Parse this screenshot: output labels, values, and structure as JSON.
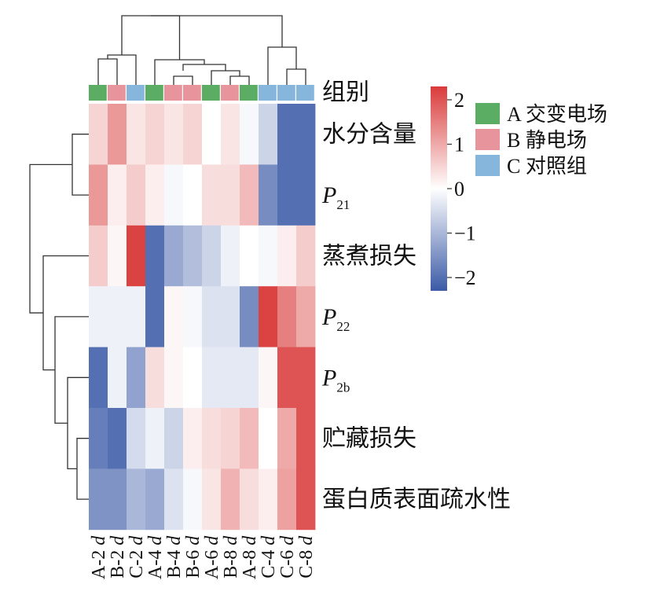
{
  "chart_data": {
    "type": "heatmap",
    "columns": [
      {
        "name": "A-2",
        "unit": "d",
        "group": "A"
      },
      {
        "name": "B-2",
        "unit": "d",
        "group": "B"
      },
      {
        "name": "C-2",
        "unit": "d",
        "group": "C"
      },
      {
        "name": "A-4",
        "unit": "d",
        "group": "A"
      },
      {
        "name": "B-4",
        "unit": "d",
        "group": "B"
      },
      {
        "name": "B-6",
        "unit": "d",
        "group": "B"
      },
      {
        "name": "A-6",
        "unit": "d",
        "group": "A"
      },
      {
        "name": "B-8",
        "unit": "d",
        "group": "B"
      },
      {
        "name": "A-8",
        "unit": "d",
        "group": "A"
      },
      {
        "name": "C-4",
        "unit": "d",
        "group": "C"
      },
      {
        "name": "C-6",
        "unit": "d",
        "group": "C"
      },
      {
        "name": "C-8",
        "unit": "d",
        "group": "C"
      }
    ],
    "rows": [
      {
        "label": "水分含量",
        "var": "",
        "sub": ""
      },
      {
        "label": "",
        "var": "P",
        "sub": "21"
      },
      {
        "label": "蒸煮损失",
        "var": "",
        "sub": ""
      },
      {
        "label": "",
        "var": "P",
        "sub": "22"
      },
      {
        "label": "",
        "var": "P",
        "sub": "2b"
      },
      {
        "label": "贮藏损失",
        "var": "",
        "sub": ""
      },
      {
        "label": "蛋白质表面疏水性",
        "var": "",
        "sub": ""
      }
    ],
    "values": [
      [
        0.5,
        1.2,
        0.3,
        0.5,
        0.3,
        0.5,
        0.0,
        0.3,
        -0.1,
        -0.6,
        -2.0,
        -2.0
      ],
      [
        1.2,
        0.2,
        0.6,
        0.2,
        -0.1,
        0.0,
        0.4,
        0.4,
        0.8,
        -1.6,
        -2.0,
        -2.0
      ],
      [
        0.6,
        0.1,
        2.2,
        -2.0,
        -1.2,
        -0.9,
        -0.6,
        -0.2,
        0.0,
        -0.1,
        0.2,
        0.6
      ],
      [
        -0.2,
        -0.2,
        -0.2,
        -2.0,
        0.1,
        -0.1,
        -0.4,
        -0.4,
        -1.6,
        2.2,
        1.5,
        1.0
      ],
      [
        -2.0,
        -0.2,
        -1.3,
        0.4,
        0.1,
        0.0,
        -0.3,
        -0.3,
        -0.3,
        0.1,
        2.0,
        2.0
      ],
      [
        -1.8,
        -2.0,
        -0.5,
        -0.2,
        -0.6,
        0.2,
        0.4,
        0.5,
        0.8,
        0.0,
        1.0,
        2.0
      ],
      [
        -1.5,
        -1.5,
        -1.0,
        -1.2,
        -0.4,
        -0.1,
        0.3,
        0.9,
        0.4,
        0.2,
        1.1,
        2.0
      ]
    ],
    "group_annotation": {
      "title": "组别",
      "groups": [
        {
          "key": "A",
          "label": "A 交变电场",
          "color": "#5bad64"
        },
        {
          "key": "B",
          "label": "B 静电场",
          "color": "#e8949c"
        },
        {
          "key": "C",
          "label": "C 对照组",
          "color": "#87b6dc"
        }
      ]
    },
    "color_scale": {
      "min": -2.3,
      "max": 2.3,
      "low_color": "#3b5aa6",
      "mid_color": "#ffffff",
      "high_color": "#d93a3a",
      "ticks": [
        {
          "value": 2,
          "label": "2"
        },
        {
          "value": 1,
          "label": "1"
        },
        {
          "value": 0,
          "label": "0"
        },
        {
          "value": -1,
          "label": "−1"
        },
        {
          "value": -2,
          "label": "−2"
        }
      ]
    }
  }
}
